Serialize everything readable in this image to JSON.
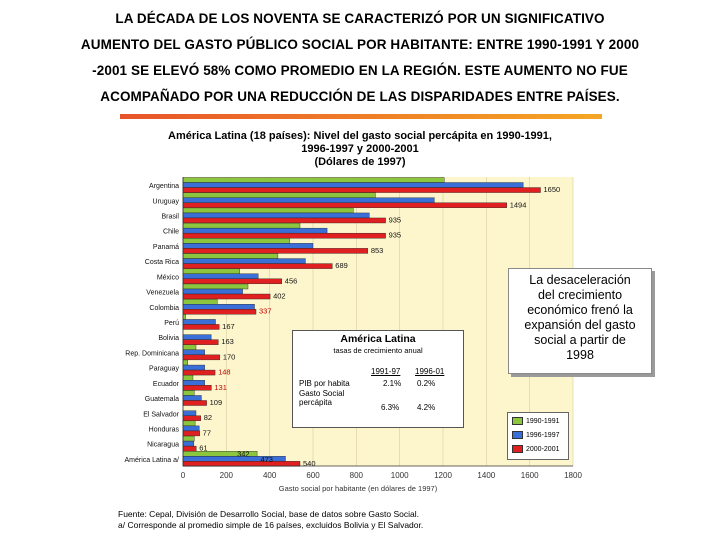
{
  "headline": [
    "LA DÉCADA DE LOS NOVENTA SE CARACTERIZÓ POR UN SIGNIFICATIVO",
    "AUMENTO DEL GASTO PÚBLICO SOCIAL POR HABITANTE: ENTRE 1990-1991 Y 2000",
    "-2001 SE ELEVÓ 58% COMO PROMEDIO EN LA REGIÓN.  ESTE AUMENTO NO FUE",
    "ACOMPAÑADO POR UNA REDUCCIÓN DE LAS DISPARIDADES ENTRE PAÍSES."
  ],
  "chart_title": [
    "América Latina (18 países): Nivel del gasto social percápita en 1990-1991,",
    "1996-1997 y 2000-2001",
    "(Dólares de 1997)"
  ],
  "callout": [
    "La desaceleración",
    "del crecimiento",
    "económico frenó la",
    "expansión del gasto",
    "social a partir de",
    "1998"
  ],
  "latam_box": {
    "title": "América Latina",
    "subtitle": "tasas de crecimiento anual",
    "col1": "1991-97",
    "col2": "1996-01",
    "row1_label": "PIB por habita",
    "row2_label": [
      "Gasto Social",
      "percápita"
    ],
    "r1c1": "2.1%",
    "r1c2": "0.2%",
    "r2c1": "6.3%",
    "r2c2": "4.2%"
  },
  "footer": [
    "Fuente: Cepal, División de Desarrollo Social, base de datos sobre Gasto Social.",
    "a/ Corresponde al promedio simple de 16 países, excluidos Bolivia y El Salvador."
  ],
  "colors": {
    "s1990": "#8cc63f",
    "s1996": "#3a6fd8",
    "s2000": "#e02020",
    "plot_bg": "#fdf6cc",
    "label_red": "#c00000"
  },
  "chart_data": {
    "type": "bar",
    "orientation": "horizontal",
    "categories": [
      "Argentina",
      "Uruguay",
      "Brasil",
      "Chile",
      "Panamá",
      "Costa Rica",
      "México",
      "Venezuela",
      "Colombia",
      "Perú",
      "Bolivia",
      "Rep. Dominicana",
      "Paraguay",
      "Ecuador",
      "Guatemala",
      "El Salvador",
      "Honduras",
      "Nicaragua",
      "América Latina a/"
    ],
    "series": [
      {
        "name": "1990-1991",
        "values": [
          1206,
          888,
          786,
          540,
          492,
          438,
          262,
          300,
          158,
          12,
          0,
          60,
          22,
          46,
          52,
          0,
          56,
          52,
          342
        ]
      },
      {
        "name": "1996-1997",
        "values": [
          1570,
          1160,
          860,
          665,
          600,
          565,
          347,
          275,
          330,
          150,
          130,
          100,
          100,
          100,
          85,
          60,
          75,
          50,
          473
        ]
      },
      {
        "name": "2000-2001",
        "values": [
          1650,
          1494,
          935,
          935,
          853,
          689,
          456,
          402,
          337,
          167,
          163,
          170,
          148,
          131,
          109,
          82,
          77,
          61,
          540
        ]
      }
    ],
    "value_labels": [
      "1650",
      "1494",
      "935",
      "935",
      "853",
      "689",
      "456",
      "402",
      "337",
      "167",
      "163",
      "170",
      "148",
      "131",
      "109",
      "82",
      "77",
      "61",
      "540"
    ],
    "latam_labels": [
      "342",
      "473",
      "540"
    ],
    "xlim": [
      0,
      1800
    ],
    "xticks": [
      "0",
      "200",
      "400",
      "600",
      "800",
      "1000",
      "1200",
      "1400",
      "1600",
      "1800"
    ],
    "xlabel": "Gasto social por habitante (en dólares de 1997)",
    "legend": [
      "1990-1991",
      "1996-1997",
      "2000-2001"
    ]
  }
}
